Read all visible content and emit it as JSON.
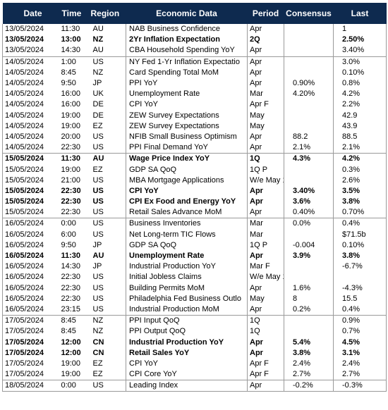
{
  "headers": {
    "date": "Date",
    "time": "Time",
    "region": "Region",
    "econ": "Economic Data",
    "period": "Period",
    "consensus": "Consensus",
    "last": "Last"
  },
  "rows": [
    {
      "date": "13/05/2024",
      "time": "11:30",
      "region": "AU",
      "econ": "NAB Business Confidence",
      "period": "Apr",
      "consensus": "",
      "last": "1",
      "bold": false
    },
    {
      "date": "13/05/2024",
      "time": "13:00",
      "region": "NZ",
      "econ": "2Yr Inflation Expectation",
      "period": "2Q",
      "consensus": "",
      "last": "2.50%",
      "bold": true
    },
    {
      "date": "13/05/2024",
      "time": "14:30",
      "region": "AU",
      "econ": "CBA Household Spending YoY",
      "period": "Apr",
      "consensus": "",
      "last": "3.40%",
      "bold": false
    },
    {
      "date": "14/05/2024",
      "time": "1:00",
      "region": "US",
      "econ": "NY Fed 1-Yr Inflation Expectatio",
      "period": "Apr",
      "consensus": "",
      "last": "3.0%",
      "bold": false,
      "sep": true
    },
    {
      "date": "14/05/2024",
      "time": "8:45",
      "region": "NZ",
      "econ": "Card Spending Total MoM",
      "period": "Apr",
      "consensus": "",
      "last": "0.10%",
      "bold": false
    },
    {
      "date": "14/05/2024",
      "time": "9:50",
      "region": "JP",
      "econ": "PPI YoY",
      "period": "Apr",
      "consensus": "0.90%",
      "last": "0.8%",
      "bold": false
    },
    {
      "date": "14/05/2024",
      "time": "16:00",
      "region": "UK",
      "econ": "Unemployment Rate",
      "period": "Mar",
      "consensus": "4.20%",
      "last": "4.2%",
      "bold": false
    },
    {
      "date": "14/05/2024",
      "time": "16:00",
      "region": "DE",
      "econ": "CPI YoY",
      "period": "Apr F",
      "consensus": "",
      "last": "2.2%",
      "bold": false
    },
    {
      "date": "14/05/2024",
      "time": "19:00",
      "region": "DE",
      "econ": "ZEW Survey Expectations",
      "period": "May",
      "consensus": "",
      "last": "42.9",
      "bold": false
    },
    {
      "date": "14/05/2024",
      "time": "19:00",
      "region": "EZ",
      "econ": "ZEW Survey Expectations",
      "period": "May",
      "consensus": "",
      "last": "43.9",
      "bold": false
    },
    {
      "date": "14/05/2024",
      "time": "20:00",
      "region": "US",
      "econ": "NFIB Small Business Optimism",
      "period": "Apr",
      "consensus": "88.2",
      "last": "88.5",
      "bold": false
    },
    {
      "date": "14/05/2024",
      "time": "22:30",
      "region": "US",
      "econ": "PPI Final Demand YoY",
      "period": "Apr",
      "consensus": "2.1%",
      "last": "2.1%",
      "bold": false
    },
    {
      "date": "15/05/2024",
      "time": "11:30",
      "region": "AU",
      "econ": "Wage Price Index YoY",
      "period": "1Q",
      "consensus": "4.3%",
      "last": "4.2%",
      "bold": true,
      "sep": true
    },
    {
      "date": "15/05/2024",
      "time": "19:00",
      "region": "EZ",
      "econ": "GDP SA QoQ",
      "period": "1Q P",
      "consensus": "",
      "last": "0.3%",
      "bold": false
    },
    {
      "date": "15/05/2024",
      "time": "21:00",
      "region": "US",
      "econ": "MBA Mortgage Applications",
      "period": "W/e May 10",
      "consensus": "",
      "last": "2.6%",
      "bold": false
    },
    {
      "date": "15/05/2024",
      "time": "22:30",
      "region": "US",
      "econ": "CPI YoY",
      "period": "Apr",
      "consensus": "3.40%",
      "last": "3.5%",
      "bold": true
    },
    {
      "date": "15/05/2024",
      "time": "22:30",
      "region": "US",
      "econ": "CPI Ex Food and Energy YoY",
      "period": "Apr",
      "consensus": "3.6%",
      "last": "3.8%",
      "bold": true
    },
    {
      "date": "15/05/2024",
      "time": "22:30",
      "region": "US",
      "econ": "Retail Sales Advance MoM",
      "period": "Apr",
      "consensus": "0.40%",
      "last": "0.70%",
      "bold": false
    },
    {
      "date": "16/05/2024",
      "time": "0:00",
      "region": "US",
      "econ": "Business Inventories",
      "period": "Mar",
      "consensus": "0.0%",
      "last": "0.4%",
      "bold": false,
      "sep": true
    },
    {
      "date": "16/05/2024",
      "time": "6:00",
      "region": "US",
      "econ": "Net Long-term TIC Flows",
      "period": "Mar",
      "consensus": "",
      "last": "$71.5b",
      "bold": false
    },
    {
      "date": "16/05/2024",
      "time": "9:50",
      "region": "JP",
      "econ": "GDP SA QoQ",
      "period": "1Q P",
      "consensus": "-0.004",
      "last": "0.10%",
      "bold": false
    },
    {
      "date": "16/05/2024",
      "time": "11:30",
      "region": "AU",
      "econ": "Unemployment Rate",
      "period": "Apr",
      "consensus": "3.9%",
      "last": "3.8%",
      "bold": true
    },
    {
      "date": "16/05/2024",
      "time": "14:30",
      "region": "JP",
      "econ": "Industrial Production YoY",
      "period": "Mar F",
      "consensus": "",
      "last": "-6.7%",
      "bold": false
    },
    {
      "date": "16/05/2024",
      "time": "22:30",
      "region": "US",
      "econ": "Initial Jobless Claims",
      "period": "W/e May 11",
      "consensus": "",
      "last": "",
      "bold": false
    },
    {
      "date": "16/05/2024",
      "time": "22:30",
      "region": "US",
      "econ": "Building Permits MoM",
      "period": "Apr",
      "consensus": "1.6%",
      "last": "-4.3%",
      "bold": false
    },
    {
      "date": "16/05/2024",
      "time": "22:30",
      "region": "US",
      "econ": "Philadelphia Fed Business Outlo",
      "period": "May",
      "consensus": "8",
      "last": "15.5",
      "bold": false
    },
    {
      "date": "16/05/2024",
      "time": "23:15",
      "region": "US",
      "econ": "Industrial Production MoM",
      "period": "Apr",
      "consensus": "0.2%",
      "last": "0.4%",
      "bold": false
    },
    {
      "date": "17/05/2024",
      "time": "8:45",
      "region": "NZ",
      "econ": "PPI Input QoQ",
      "period": "1Q",
      "consensus": "",
      "last": "0.9%",
      "bold": false,
      "sep": true
    },
    {
      "date": "17/05/2024",
      "time": "8:45",
      "region": "NZ",
      "econ": "PPI Output QoQ",
      "period": "1Q",
      "consensus": "",
      "last": "0.7%",
      "bold": false
    },
    {
      "date": "17/05/2024",
      "time": "12:00",
      "region": "CN",
      "econ": "Industrial Production YoY",
      "period": "Apr",
      "consensus": "5.4%",
      "last": "4.5%",
      "bold": true
    },
    {
      "date": "17/05/2024",
      "time": "12:00",
      "region": "CN",
      "econ": "Retail Sales YoY",
      "period": "Apr",
      "consensus": "3.8%",
      "last": "3.1%",
      "bold": true
    },
    {
      "date": "17/05/2024",
      "time": "19:00",
      "region": "EZ",
      "econ": "CPI YoY",
      "period": "Apr F",
      "consensus": "2.4%",
      "last": "2.4%",
      "bold": false
    },
    {
      "date": "17/05/2024",
      "time": "19:00",
      "region": "EZ",
      "econ": "CPI Core YoY",
      "period": "Apr F",
      "consensus": "2.7%",
      "last": "2.7%",
      "bold": false
    },
    {
      "date": "18/05/2024",
      "time": "0:00",
      "region": "US",
      "econ": "Leading Index",
      "period": "Apr",
      "consensus": "-0.2%",
      "last": "-0.3%",
      "bold": false,
      "sep": true,
      "end": true
    }
  ],
  "colors": {
    "header_bg": "#0e2a4f",
    "header_text": "#ffffff",
    "grid_line": "#9a9a9a"
  }
}
